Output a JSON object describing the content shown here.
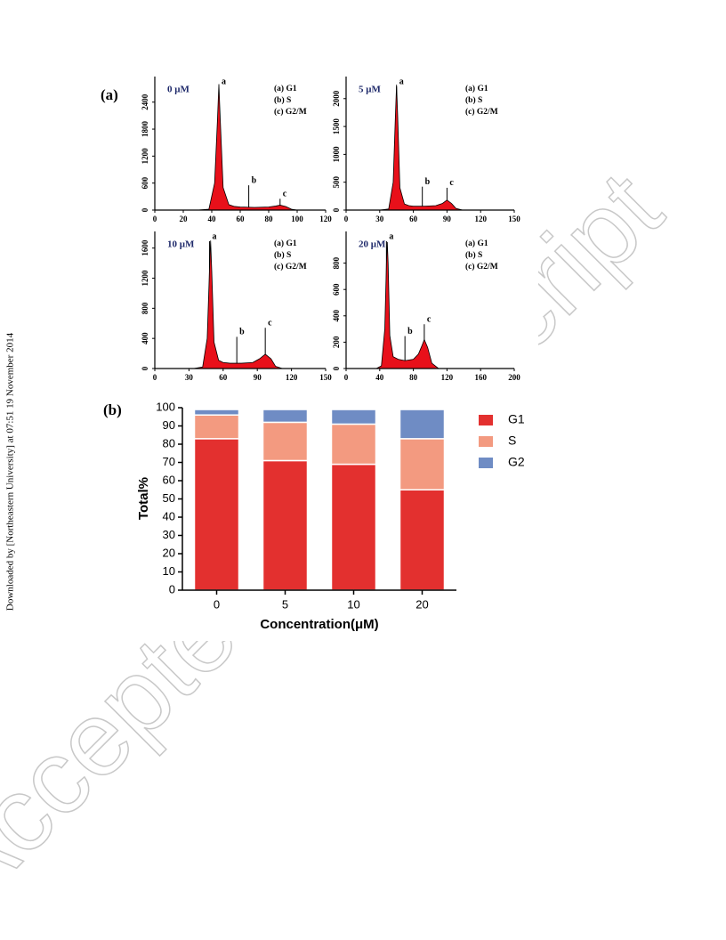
{
  "sidebar": "Downloaded by [Northeastern University] at 07:51 19 November 2014",
  "watermark": "Accepted Manuscript",
  "figure": {
    "labels": [
      "(a)",
      "(b)"
    ]
  },
  "chart_data": [
    {
      "type": "area",
      "title": "0 μM",
      "legend": [
        "(a) G1",
        "(b) S",
        "(c) G2/M"
      ],
      "color": "#e8101a",
      "x": [
        0,
        30,
        38,
        42,
        44,
        45,
        46,
        48,
        52,
        56,
        60,
        70,
        80,
        85,
        88,
        92,
        96,
        100,
        120
      ],
      "values": [
        0,
        0,
        20,
        600,
        2000,
        2800,
        2000,
        500,
        120,
        80,
        70,
        60,
        70,
        90,
        110,
        80,
        20,
        0,
        0
      ],
      "xlim": [
        0,
        120
      ],
      "ylim": [
        0,
        2850
      ],
      "xticks": [
        0,
        20,
        40,
        60,
        80,
        100,
        120
      ],
      "yticks": [
        0,
        600,
        1200,
        1800,
        2400
      ],
      "annotations": [
        {
          "label": "a",
          "x": 45,
          "y": 2850
        },
        {
          "label": "b",
          "x": 66,
          "y": 650
        },
        {
          "label": "c",
          "x": 88,
          "y": 350
        }
      ]
    },
    {
      "type": "area",
      "title": "5 μM",
      "legend": [
        "(a) G1",
        "(b) S",
        "(c) G2/M"
      ],
      "color": "#e8101a",
      "x": [
        0,
        30,
        38,
        42,
        44,
        45,
        46,
        48,
        52,
        56,
        60,
        70,
        80,
        86,
        90,
        94,
        98,
        104,
        150
      ],
      "values": [
        0,
        0,
        20,
        500,
        1700,
        2250,
        1700,
        400,
        110,
        80,
        70,
        70,
        80,
        120,
        180,
        120,
        30,
        0,
        0
      ],
      "xlim": [
        0,
        150
      ],
      "ylim": [
        0,
        2300
      ],
      "xticks": [
        0,
        30,
        60,
        90,
        120,
        150
      ],
      "yticks": [
        0,
        500,
        1000,
        1500,
        2000
      ],
      "annotations": [
        {
          "label": "a",
          "x": 45,
          "y": 2300
        },
        {
          "label": "b",
          "x": 68,
          "y": 500
        },
        {
          "label": "c",
          "x": 90,
          "y": 480
        }
      ]
    },
    {
      "type": "area",
      "title": "10 μM",
      "legend": [
        "(a) G1",
        "(b) S",
        "(c) G2/M"
      ],
      "color": "#e8101a",
      "x": [
        0,
        34,
        42,
        46,
        48,
        49,
        50,
        52,
        56,
        60,
        66,
        76,
        86,
        92,
        97,
        102,
        106,
        112,
        150
      ],
      "values": [
        0,
        0,
        20,
        400,
        1300,
        1700,
        1300,
        350,
        110,
        80,
        70,
        70,
        80,
        130,
        190,
        130,
        30,
        0,
        0
      ],
      "xlim": [
        0,
        150
      ],
      "ylim": [
        0,
        1750
      ],
      "xticks": [
        0,
        30,
        60,
        90,
        120,
        150
      ],
      "yticks": [
        0,
        400,
        800,
        1200,
        1600
      ],
      "annotations": [
        {
          "label": "a",
          "x": 48,
          "y": 1750
        },
        {
          "label": "b",
          "x": 72,
          "y": 480
        },
        {
          "label": "c",
          "x": 97,
          "y": 600
        }
      ]
    },
    {
      "type": "area",
      "title": "20 μM",
      "legend": [
        "(a) G1",
        "(b) S",
        "(c) G2/M"
      ],
      "color": "#e8101a",
      "x": [
        0,
        36,
        42,
        46,
        48,
        49,
        50,
        52,
        56,
        62,
        70,
        80,
        86,
        90,
        93,
        97,
        102,
        110,
        200
      ],
      "values": [
        0,
        0,
        20,
        300,
        800,
        960,
        800,
        250,
        90,
        70,
        60,
        70,
        110,
        170,
        220,
        160,
        40,
        0,
        0
      ],
      "xlim": [
        0,
        200
      ],
      "ylim": [
        0,
        1000
      ],
      "xticks": [
        0,
        40,
        80,
        120,
        160,
        200
      ],
      "yticks": [
        0,
        200,
        400,
        600,
        800
      ],
      "annotations": [
        {
          "label": "a",
          "x": 48,
          "y": 1000
        },
        {
          "label": "b",
          "x": 70,
          "y": 280
        },
        {
          "label": "c",
          "x": 93,
          "y": 370
        }
      ]
    },
    {
      "type": "stacked-bar",
      "categories": [
        "0",
        "5",
        "10",
        "20"
      ],
      "series": [
        {
          "name": "G1",
          "color": "#e3302f",
          "values": [
            83,
            71,
            69,
            55
          ]
        },
        {
          "name": "S",
          "color": "#f39a80",
          "values": [
            13,
            21,
            22,
            28
          ]
        },
        {
          "name": "G2",
          "color": "#6f8cc4",
          "values": [
            3,
            7,
            8,
            16
          ]
        }
      ],
      "xlabel": "Concentration(μM)",
      "ylabel": "Total%",
      "ylim": [
        0,
        100
      ],
      "yticks": [
        0,
        10,
        20,
        30,
        40,
        50,
        60,
        70,
        80,
        90,
        100
      ],
      "legend": "right"
    }
  ]
}
